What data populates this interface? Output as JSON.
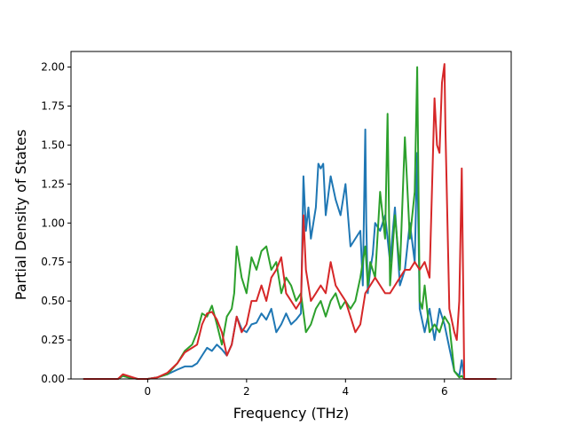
{
  "chart_data": {
    "type": "line",
    "title": "",
    "xlabel": "Frequency (THz)",
    "ylabel": "Partial Density of States",
    "xlim": [
      -1.55,
      7.35
    ],
    "ylim": [
      0.0,
      2.1
    ],
    "x_ticks": [
      0,
      2,
      4,
      6
    ],
    "x_tick_labels": [
      "0",
      "2",
      "4",
      "6"
    ],
    "y_ticks": [
      0.0,
      0.25,
      0.5,
      0.75,
      1.0,
      1.25,
      1.5,
      1.75,
      2.0
    ],
    "y_tick_labels": [
      "0.00",
      "0.25",
      "0.50",
      "0.75",
      "1.00",
      "1.25",
      "1.50",
      "1.75",
      "2.00"
    ],
    "grid": false,
    "legend": "none",
    "series": [
      {
        "color": "#1f77b4",
        "x": [
          -1.3,
          -0.6,
          -0.5,
          -0.4,
          -0.2,
          0.0,
          0.2,
          0.4,
          0.6,
          0.75,
          0.9,
          1.0,
          1.1,
          1.2,
          1.3,
          1.4,
          1.5,
          1.6,
          1.7,
          1.8,
          1.9,
          2.0,
          2.1,
          2.2,
          2.3,
          2.4,
          2.5,
          2.6,
          2.7,
          2.8,
          2.9,
          3.0,
          3.1,
          3.15,
          3.2,
          3.25,
          3.3,
          3.4,
          3.45,
          3.5,
          3.55,
          3.6,
          3.7,
          3.8,
          3.9,
          4.0,
          4.1,
          4.2,
          4.3,
          4.35,
          4.4,
          4.42,
          4.45,
          4.5,
          4.55,
          4.6,
          4.7,
          4.8,
          4.9,
          5.0,
          5.1,
          5.2,
          5.3,
          5.4,
          5.45,
          5.5,
          5.6,
          5.7,
          5.8,
          5.9,
          6.0,
          6.1,
          6.2,
          6.3,
          6.35,
          6.4,
          7.05
        ],
        "values": [
          0.0,
          0.0,
          0.02,
          0.01,
          0.0,
          0.0,
          0.01,
          0.03,
          0.06,
          0.08,
          0.08,
          0.1,
          0.15,
          0.2,
          0.18,
          0.22,
          0.19,
          0.15,
          0.22,
          0.4,
          0.32,
          0.3,
          0.35,
          0.36,
          0.42,
          0.38,
          0.45,
          0.3,
          0.35,
          0.42,
          0.35,
          0.38,
          0.42,
          1.3,
          0.95,
          1.1,
          0.9,
          1.1,
          1.38,
          1.35,
          1.38,
          1.05,
          1.3,
          1.15,
          1.05,
          1.25,
          0.85,
          0.9,
          0.95,
          0.6,
          1.6,
          1.0,
          0.55,
          0.7,
          0.8,
          1.0,
          0.95,
          1.05,
          0.75,
          1.1,
          0.6,
          0.7,
          1.0,
          0.75,
          1.45,
          0.45,
          0.3,
          0.45,
          0.25,
          0.45,
          0.35,
          0.2,
          0.05,
          0.02,
          0.12,
          0.0,
          0.0
        ]
      },
      {
        "color": "#2ca02c",
        "x": [
          -1.3,
          -0.6,
          -0.5,
          -0.4,
          -0.2,
          0.0,
          0.2,
          0.4,
          0.6,
          0.75,
          0.9,
          1.0,
          1.1,
          1.2,
          1.3,
          1.4,
          1.5,
          1.6,
          1.7,
          1.75,
          1.8,
          1.9,
          2.0,
          2.1,
          2.2,
          2.3,
          2.4,
          2.5,
          2.6,
          2.7,
          2.8,
          2.9,
          3.0,
          3.1,
          3.2,
          3.3,
          3.4,
          3.5,
          3.6,
          3.7,
          3.8,
          3.9,
          4.0,
          4.1,
          4.2,
          4.3,
          4.4,
          4.45,
          4.5,
          4.6,
          4.7,
          4.8,
          4.85,
          4.9,
          5.0,
          5.1,
          5.2,
          5.3,
          5.4,
          5.45,
          5.5,
          5.55,
          5.6,
          5.7,
          5.8,
          5.9,
          6.0,
          6.1,
          6.2,
          6.3,
          6.35,
          6.4,
          7.05
        ],
        "values": [
          0.0,
          0.0,
          0.02,
          0.01,
          0.0,
          0.0,
          0.01,
          0.03,
          0.1,
          0.18,
          0.22,
          0.3,
          0.42,
          0.4,
          0.47,
          0.35,
          0.22,
          0.4,
          0.45,
          0.55,
          0.85,
          0.65,
          0.55,
          0.78,
          0.7,
          0.82,
          0.85,
          0.7,
          0.75,
          0.55,
          0.65,
          0.6,
          0.5,
          0.55,
          0.3,
          0.35,
          0.45,
          0.5,
          0.4,
          0.5,
          0.55,
          0.45,
          0.5,
          0.45,
          0.5,
          0.65,
          0.85,
          0.6,
          0.75,
          0.65,
          1.2,
          0.9,
          1.7,
          0.6,
          1.05,
          0.7,
          1.55,
          0.9,
          1.2,
          2.0,
          0.5,
          0.45,
          0.6,
          0.3,
          0.35,
          0.3,
          0.4,
          0.35,
          0.05,
          0.01,
          0.02,
          0.0,
          0.0
        ]
      },
      {
        "color": "#d62728",
        "x": [
          -1.3,
          -0.6,
          -0.5,
          -0.4,
          -0.2,
          0.0,
          0.2,
          0.4,
          0.6,
          0.75,
          0.9,
          1.0,
          1.1,
          1.2,
          1.3,
          1.4,
          1.5,
          1.6,
          1.7,
          1.8,
          1.9,
          2.0,
          2.1,
          2.2,
          2.3,
          2.4,
          2.5,
          2.6,
          2.7,
          2.8,
          2.9,
          3.0,
          3.1,
          3.15,
          3.2,
          3.3,
          3.4,
          3.5,
          3.6,
          3.7,
          3.8,
          3.9,
          4.0,
          4.1,
          4.2,
          4.3,
          4.4,
          4.5,
          4.6,
          4.7,
          4.8,
          4.9,
          5.0,
          5.1,
          5.2,
          5.3,
          5.4,
          5.5,
          5.6,
          5.7,
          5.8,
          5.85,
          5.9,
          5.95,
          6.0,
          6.02,
          6.1,
          6.2,
          6.25,
          6.3,
          6.35,
          6.38,
          6.4,
          7.05
        ],
        "values": [
          0.0,
          0.0,
          0.03,
          0.02,
          0.0,
          0.0,
          0.01,
          0.04,
          0.1,
          0.17,
          0.2,
          0.22,
          0.35,
          0.42,
          0.43,
          0.38,
          0.3,
          0.15,
          0.22,
          0.4,
          0.3,
          0.35,
          0.5,
          0.5,
          0.6,
          0.5,
          0.65,
          0.7,
          0.78,
          0.55,
          0.5,
          0.45,
          0.5,
          1.05,
          0.7,
          0.5,
          0.55,
          0.6,
          0.55,
          0.75,
          0.6,
          0.55,
          0.5,
          0.4,
          0.3,
          0.35,
          0.55,
          0.6,
          0.65,
          0.6,
          0.55,
          0.55,
          0.6,
          0.65,
          0.7,
          0.7,
          0.75,
          0.7,
          0.75,
          0.65,
          1.8,
          1.5,
          1.45,
          1.9,
          2.02,
          1.6,
          0.45,
          0.3,
          0.25,
          0.5,
          1.35,
          0.6,
          0.0,
          0.0
        ]
      }
    ]
  }
}
